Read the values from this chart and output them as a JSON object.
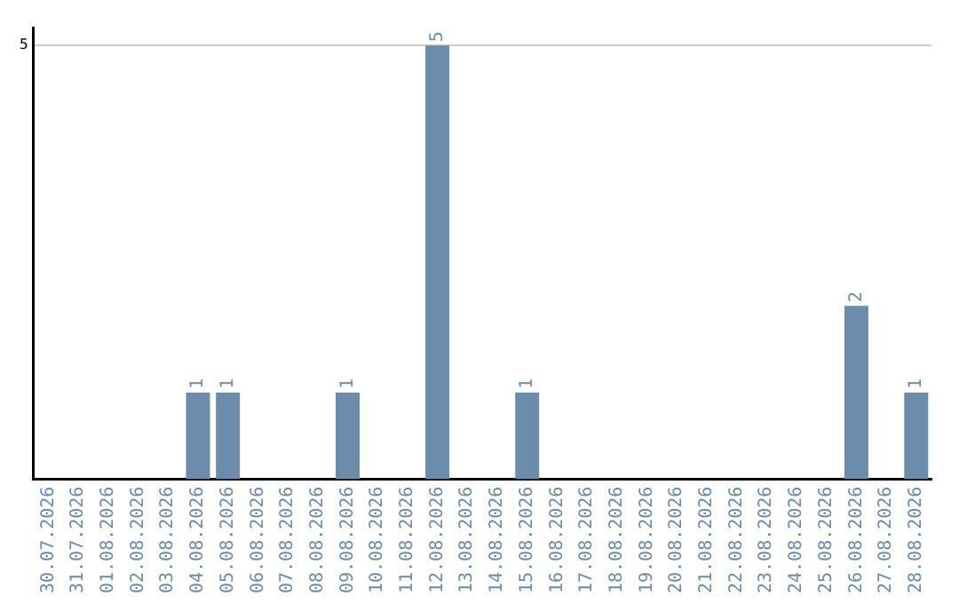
{
  "chart_data": {
    "type": "bar",
    "categories": [
      "30.07.2026",
      "31.07.2026",
      "01.08.2026",
      "02.08.2026",
      "03.08.2026",
      "04.08.2026",
      "05.08.2026",
      "06.08.2026",
      "07.08.2026",
      "08.08.2026",
      "09.08.2026",
      "10.08.2026",
      "11.08.2026",
      "12.08.2026",
      "13.08.2026",
      "14.08.2026",
      "15.08.2026",
      "16.08.2026",
      "17.08.2026",
      "18.08.2026",
      "19.08.2026",
      "20.08.2026",
      "21.08.2026",
      "22.08.2026",
      "23.08.2026",
      "24.08.2026",
      "25.08.2026",
      "26.08.2026",
      "27.08.2026",
      "28.08.2026"
    ],
    "values": [
      0,
      0,
      0,
      0,
      0,
      1,
      1,
      0,
      0,
      0,
      1,
      0,
      0,
      5,
      0,
      0,
      1,
      0,
      0,
      0,
      0,
      0,
      0,
      0,
      0,
      0,
      0,
      2,
      0,
      1
    ],
    "value_labels": [
      null,
      null,
      null,
      null,
      null,
      "1",
      "1",
      null,
      null,
      null,
      "1",
      null,
      null,
      "5",
      null,
      null,
      "1",
      null,
      null,
      null,
      null,
      null,
      null,
      null,
      null,
      null,
      null,
      "2",
      null,
      "1"
    ],
    "color": "#6b8caa",
    "ylim": [
      0,
      5.2
    ],
    "yticks": [
      5
    ],
    "grid": "y",
    "legend": false
  }
}
